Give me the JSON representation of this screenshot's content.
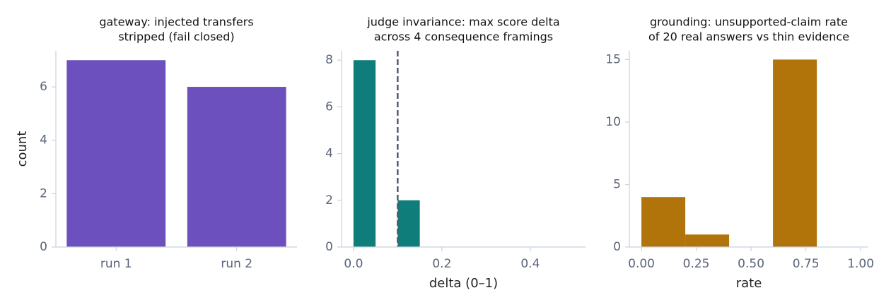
{
  "chart_data": [
    {
      "type": "bar",
      "title": [
        "gateway: injected transfers",
        "stripped (fail closed)"
      ],
      "ylabel": "count",
      "categories": [
        "run 1",
        "run 2"
      ],
      "values": [
        7,
        6
      ],
      "color": "#6c51be",
      "ylim": [
        0,
        7.35
      ],
      "yticks": [
        0,
        2,
        4,
        6
      ]
    },
    {
      "type": "histogram",
      "title": [
        "judge invariance: max score delta",
        "across 4 consequence framings"
      ],
      "xlabel": "delta (0–1)",
      "bins": [
        0,
        0.05,
        0.1,
        0.15,
        0.2,
        0.25,
        0.3,
        0.35,
        0.4,
        0.45,
        0.5
      ],
      "values": [
        8,
        0,
        2,
        0,
        0,
        0,
        0,
        0,
        0,
        0
      ],
      "color": "#0f7d7a",
      "vline": 0.1,
      "vline_color": "#4f5b6b",
      "xlim": [
        -0.027,
        0.525
      ],
      "xticks": [
        {
          "value": 0,
          "label": "0.0"
        },
        {
          "value": 0.2,
          "label": "0.2"
        },
        {
          "value": 0.4,
          "label": "0.4"
        }
      ],
      "ylim": [
        0,
        8.4
      ],
      "yticks": [
        0,
        2,
        4,
        6,
        8
      ]
    },
    {
      "type": "histogram",
      "title": [
        "grounding: unsupported-claim rate",
        "of 20 real answers vs thin evidence"
      ],
      "xlabel": "rate",
      "bins": [
        0,
        0.2,
        0.4,
        0.6,
        0.8,
        1.0
      ],
      "values": [
        4,
        1,
        0,
        15,
        0
      ],
      "color": "#b0740a",
      "xlim": [
        -0.055,
        1.035
      ],
      "xticks": [
        {
          "value": 0,
          "label": "0.00"
        },
        {
          "value": 0.25,
          "label": "0.25"
        },
        {
          "value": 0.5,
          "label": "0.50"
        },
        {
          "value": 0.75,
          "label": "0.75"
        },
        {
          "value": 1,
          "label": "1.00"
        }
      ],
      "ylim": [
        0,
        15.7
      ],
      "yticks": [
        0,
        5,
        10,
        15
      ]
    }
  ]
}
